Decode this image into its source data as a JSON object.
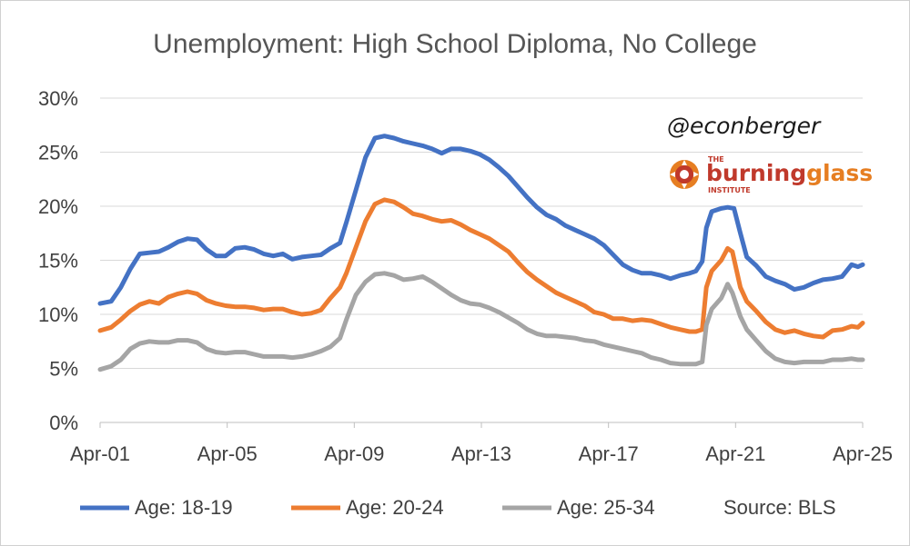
{
  "chart_data": {
    "type": "line",
    "title": "Unemployment: High School Diploma, No College",
    "xlabel": "",
    "ylabel": "",
    "x_tick_labels": [
      "Apr-01",
      "Apr-05",
      "Apr-09",
      "Apr-13",
      "Apr-17",
      "Apr-21",
      "Apr-25"
    ],
    "x_tick_years": [
      2001,
      2005,
      2009,
      2013,
      2017,
      2021,
      2025
    ],
    "y_tick_labels": [
      "0%",
      "5%",
      "10%",
      "15%",
      "20%",
      "25%",
      "30%"
    ],
    "ylim": [
      0,
      30
    ],
    "xlim": [
      2001.25,
      2025.25
    ],
    "grid": true,
    "legend_position": "bottom",
    "series": [
      {
        "name": "Age: 18-19",
        "color": "#4472C4",
        "points": [
          [
            2001.25,
            11.0
          ],
          [
            2001.6,
            11.2
          ],
          [
            2001.9,
            12.5
          ],
          [
            2002.2,
            14.2
          ],
          [
            2002.5,
            15.6
          ],
          [
            2002.8,
            15.7
          ],
          [
            2003.1,
            15.8
          ],
          [
            2003.4,
            16.2
          ],
          [
            2003.7,
            16.7
          ],
          [
            2004.0,
            17.0
          ],
          [
            2004.3,
            16.9
          ],
          [
            2004.6,
            16.0
          ],
          [
            2004.9,
            15.4
          ],
          [
            2005.2,
            15.4
          ],
          [
            2005.5,
            16.1
          ],
          [
            2005.8,
            16.2
          ],
          [
            2006.1,
            16.0
          ],
          [
            2006.4,
            15.6
          ],
          [
            2006.7,
            15.4
          ],
          [
            2007.0,
            15.6
          ],
          [
            2007.3,
            15.1
          ],
          [
            2007.6,
            15.3
          ],
          [
            2007.9,
            15.4
          ],
          [
            2008.2,
            15.5
          ],
          [
            2008.5,
            16.1
          ],
          [
            2008.8,
            16.6
          ],
          [
            2009.0,
            18.5
          ],
          [
            2009.3,
            21.5
          ],
          [
            2009.6,
            24.5
          ],
          [
            2009.9,
            26.3
          ],
          [
            2010.2,
            26.5
          ],
          [
            2010.5,
            26.3
          ],
          [
            2010.8,
            26.0
          ],
          [
            2011.1,
            25.8
          ],
          [
            2011.4,
            25.6
          ],
          [
            2011.7,
            25.3
          ],
          [
            2012.0,
            24.9
          ],
          [
            2012.3,
            25.3
          ],
          [
            2012.6,
            25.3
          ],
          [
            2012.9,
            25.1
          ],
          [
            2013.2,
            24.8
          ],
          [
            2013.5,
            24.3
          ],
          [
            2013.8,
            23.6
          ],
          [
            2014.1,
            22.8
          ],
          [
            2014.4,
            21.8
          ],
          [
            2014.7,
            20.8
          ],
          [
            2015.0,
            19.9
          ],
          [
            2015.3,
            19.2
          ],
          [
            2015.6,
            18.8
          ],
          [
            2015.9,
            18.2
          ],
          [
            2016.2,
            17.8
          ],
          [
            2016.5,
            17.4
          ],
          [
            2016.8,
            17.0
          ],
          [
            2017.1,
            16.4
          ],
          [
            2017.4,
            15.5
          ],
          [
            2017.7,
            14.6
          ],
          [
            2018.0,
            14.1
          ],
          [
            2018.3,
            13.8
          ],
          [
            2018.6,
            13.8
          ],
          [
            2018.9,
            13.6
          ],
          [
            2019.2,
            13.3
          ],
          [
            2019.5,
            13.6
          ],
          [
            2019.8,
            13.8
          ],
          [
            2020.0,
            14.0
          ],
          [
            2020.2,
            14.9
          ],
          [
            2020.33,
            18.0
          ],
          [
            2020.5,
            19.5
          ],
          [
            2020.8,
            19.8
          ],
          [
            2021.0,
            19.9
          ],
          [
            2021.2,
            19.8
          ],
          [
            2021.4,
            17.5
          ],
          [
            2021.6,
            15.3
          ],
          [
            2021.9,
            14.5
          ],
          [
            2022.2,
            13.5
          ],
          [
            2022.5,
            13.1
          ],
          [
            2022.8,
            12.8
          ],
          [
            2023.1,
            12.3
          ],
          [
            2023.4,
            12.5
          ],
          [
            2023.7,
            12.9
          ],
          [
            2024.0,
            13.2
          ],
          [
            2024.3,
            13.3
          ],
          [
            2024.6,
            13.5
          ],
          [
            2024.9,
            14.6
          ],
          [
            2025.1,
            14.4
          ],
          [
            2025.25,
            14.6
          ]
        ]
      },
      {
        "name": "Age: 20-24",
        "color": "#ED7D31",
        "points": [
          [
            2001.25,
            8.5
          ],
          [
            2001.6,
            8.8
          ],
          [
            2001.9,
            9.5
          ],
          [
            2002.2,
            10.3
          ],
          [
            2002.5,
            10.9
          ],
          [
            2002.8,
            11.2
          ],
          [
            2003.1,
            11.0
          ],
          [
            2003.4,
            11.6
          ],
          [
            2003.7,
            11.9
          ],
          [
            2004.0,
            12.1
          ],
          [
            2004.3,
            11.9
          ],
          [
            2004.6,
            11.3
          ],
          [
            2004.9,
            11.0
          ],
          [
            2005.2,
            10.8
          ],
          [
            2005.5,
            10.7
          ],
          [
            2005.8,
            10.7
          ],
          [
            2006.1,
            10.6
          ],
          [
            2006.4,
            10.4
          ],
          [
            2006.7,
            10.5
          ],
          [
            2007.0,
            10.5
          ],
          [
            2007.3,
            10.2
          ],
          [
            2007.6,
            10.0
          ],
          [
            2007.9,
            10.1
          ],
          [
            2008.2,
            10.4
          ],
          [
            2008.5,
            11.5
          ],
          [
            2008.8,
            12.5
          ],
          [
            2009.0,
            13.8
          ],
          [
            2009.3,
            16.2
          ],
          [
            2009.6,
            18.6
          ],
          [
            2009.9,
            20.2
          ],
          [
            2010.2,
            20.6
          ],
          [
            2010.5,
            20.4
          ],
          [
            2010.8,
            19.9
          ],
          [
            2011.1,
            19.3
          ],
          [
            2011.4,
            19.1
          ],
          [
            2011.7,
            18.8
          ],
          [
            2012.0,
            18.6
          ],
          [
            2012.3,
            18.7
          ],
          [
            2012.6,
            18.3
          ],
          [
            2012.9,
            17.8
          ],
          [
            2013.2,
            17.4
          ],
          [
            2013.5,
            17.0
          ],
          [
            2013.8,
            16.4
          ],
          [
            2014.1,
            15.8
          ],
          [
            2014.4,
            14.8
          ],
          [
            2014.7,
            13.9
          ],
          [
            2015.0,
            13.2
          ],
          [
            2015.3,
            12.6
          ],
          [
            2015.6,
            12.0
          ],
          [
            2015.9,
            11.6
          ],
          [
            2016.2,
            11.2
          ],
          [
            2016.5,
            10.8
          ],
          [
            2016.8,
            10.2
          ],
          [
            2017.1,
            10.0
          ],
          [
            2017.4,
            9.6
          ],
          [
            2017.7,
            9.6
          ],
          [
            2018.0,
            9.4
          ],
          [
            2018.3,
            9.5
          ],
          [
            2018.6,
            9.4
          ],
          [
            2018.9,
            9.1
          ],
          [
            2019.2,
            8.8
          ],
          [
            2019.5,
            8.6
          ],
          [
            2019.8,
            8.4
          ],
          [
            2020.0,
            8.4
          ],
          [
            2020.2,
            8.6
          ],
          [
            2020.33,
            12.5
          ],
          [
            2020.5,
            14.0
          ],
          [
            2020.8,
            15.0
          ],
          [
            2021.0,
            16.1
          ],
          [
            2021.15,
            15.8
          ],
          [
            2021.4,
            12.5
          ],
          [
            2021.6,
            11.2
          ],
          [
            2021.9,
            10.3
          ],
          [
            2022.2,
            9.3
          ],
          [
            2022.5,
            8.6
          ],
          [
            2022.8,
            8.3
          ],
          [
            2023.1,
            8.5
          ],
          [
            2023.4,
            8.2
          ],
          [
            2023.7,
            8.0
          ],
          [
            2024.0,
            7.9
          ],
          [
            2024.3,
            8.5
          ],
          [
            2024.6,
            8.6
          ],
          [
            2024.9,
            8.9
          ],
          [
            2025.1,
            8.8
          ],
          [
            2025.25,
            9.2
          ]
        ]
      },
      {
        "name": "Age: 25-34",
        "color": "#A5A5A5",
        "points": [
          [
            2001.25,
            4.9
          ],
          [
            2001.6,
            5.2
          ],
          [
            2001.9,
            5.8
          ],
          [
            2002.2,
            6.8
          ],
          [
            2002.5,
            7.3
          ],
          [
            2002.8,
            7.5
          ],
          [
            2003.1,
            7.4
          ],
          [
            2003.4,
            7.4
          ],
          [
            2003.7,
            7.6
          ],
          [
            2004.0,
            7.6
          ],
          [
            2004.3,
            7.4
          ],
          [
            2004.6,
            6.8
          ],
          [
            2004.9,
            6.5
          ],
          [
            2005.2,
            6.4
          ],
          [
            2005.5,
            6.5
          ],
          [
            2005.8,
            6.5
          ],
          [
            2006.1,
            6.3
          ],
          [
            2006.4,
            6.1
          ],
          [
            2006.7,
            6.1
          ],
          [
            2007.0,
            6.1
          ],
          [
            2007.3,
            6.0
          ],
          [
            2007.6,
            6.1
          ],
          [
            2007.9,
            6.3
          ],
          [
            2008.2,
            6.6
          ],
          [
            2008.5,
            7.0
          ],
          [
            2008.8,
            7.8
          ],
          [
            2009.0,
            9.5
          ],
          [
            2009.3,
            11.8
          ],
          [
            2009.6,
            13.0
          ],
          [
            2009.9,
            13.7
          ],
          [
            2010.2,
            13.8
          ],
          [
            2010.5,
            13.6
          ],
          [
            2010.8,
            13.2
          ],
          [
            2011.1,
            13.3
          ],
          [
            2011.4,
            13.5
          ],
          [
            2011.7,
            13.0
          ],
          [
            2012.0,
            12.4
          ],
          [
            2012.3,
            11.8
          ],
          [
            2012.6,
            11.3
          ],
          [
            2012.9,
            11.0
          ],
          [
            2013.2,
            10.9
          ],
          [
            2013.5,
            10.6
          ],
          [
            2013.8,
            10.2
          ],
          [
            2014.1,
            9.7
          ],
          [
            2014.4,
            9.2
          ],
          [
            2014.7,
            8.6
          ],
          [
            2015.0,
            8.2
          ],
          [
            2015.3,
            8.0
          ],
          [
            2015.6,
            8.0
          ],
          [
            2015.9,
            7.9
          ],
          [
            2016.2,
            7.8
          ],
          [
            2016.5,
            7.6
          ],
          [
            2016.8,
            7.5
          ],
          [
            2017.1,
            7.2
          ],
          [
            2017.4,
            7.0
          ],
          [
            2017.7,
            6.8
          ],
          [
            2018.0,
            6.6
          ],
          [
            2018.3,
            6.4
          ],
          [
            2018.6,
            6.0
          ],
          [
            2018.9,
            5.8
          ],
          [
            2019.2,
            5.5
          ],
          [
            2019.5,
            5.4
          ],
          [
            2019.8,
            5.4
          ],
          [
            2020.0,
            5.4
          ],
          [
            2020.2,
            5.6
          ],
          [
            2020.33,
            9.0
          ],
          [
            2020.5,
            10.5
          ],
          [
            2020.8,
            11.5
          ],
          [
            2021.0,
            12.8
          ],
          [
            2021.15,
            12.0
          ],
          [
            2021.4,
            9.8
          ],
          [
            2021.6,
            8.6
          ],
          [
            2021.9,
            7.6
          ],
          [
            2022.2,
            6.6
          ],
          [
            2022.5,
            5.9
          ],
          [
            2022.8,
            5.6
          ],
          [
            2023.1,
            5.5
          ],
          [
            2023.4,
            5.6
          ],
          [
            2023.7,
            5.6
          ],
          [
            2024.0,
            5.6
          ],
          [
            2024.3,
            5.8
          ],
          [
            2024.6,
            5.8
          ],
          [
            2024.9,
            5.9
          ],
          [
            2025.1,
            5.8
          ],
          [
            2025.25,
            5.8
          ]
        ]
      }
    ],
    "source_label": "Source: BLS"
  },
  "branding": {
    "handle": "@econberger",
    "logo_small_top": "THE",
    "logo_word_part1": "burning",
    "logo_word_part2": "glass",
    "logo_small_bottom": "INSTITUTE",
    "logo_color_dark": "#C0392B",
    "logo_color_orange": "#E67E22"
  }
}
